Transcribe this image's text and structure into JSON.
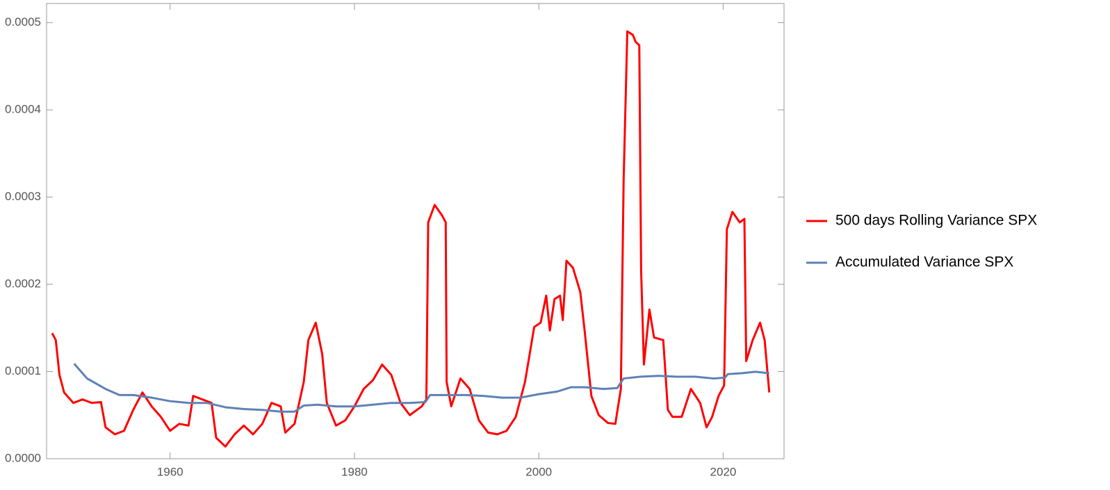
{
  "chart_data": {
    "type": "line",
    "xlim": [
      1946.6,
      2026.6
    ],
    "xticks": [
      1960,
      1980,
      2000,
      2020
    ],
    "ylim": [
      0,
      0.000522
    ],
    "yticks": [
      {
        "value": 0,
        "label": "0.0000"
      },
      0.0001,
      0.0002,
      0.0003,
      0.0004,
      0.0005
    ],
    "legend": "right",
    "series": [
      {
        "name": "500 days Rolling Variance SPX",
        "color": "#ff0000",
        "x": [
          1947.2,
          1947.6,
          1948.0,
          1948.5,
          1949.5,
          1950.5,
          1951.5,
          1952.5,
          1953,
          1954,
          1955,
          1956,
          1957,
          1958,
          1959,
          1960,
          1961,
          1962,
          1962.5,
          1963.5,
          1964.5,
          1965,
          1966,
          1967,
          1968,
          1969,
          1970,
          1971,
          1972,
          1972.5,
          1973.5,
          1974.5,
          1975,
          1975.8,
          1976.5,
          1977,
          1978,
          1979,
          1980,
          1981,
          1982,
          1983,
          1984,
          1985,
          1986,
          1987.3,
          1987.8,
          1988.0,
          1988.7,
          1989.5,
          1989.9,
          1990.0,
          1990.5,
          1991.5,
          1992.5,
          1993.5,
          1994.5,
          1995.5,
          1996.5,
          1997.5,
          1998.5,
          1999.5,
          2000.2,
          2000.8,
          2001.2,
          2001.7,
          2002.3,
          2002.6,
          2003,
          2003.7,
          2004.5,
          2005.0,
          2005.7,
          2006.5,
          2007.5,
          2008.3,
          2008.9,
          2009.2,
          2009.6,
          2010.2,
          2010.5,
          2010.9,
          2011.1,
          2011.4,
          2012,
          2012.5,
          2013.5,
          2014,
          2014.5,
          2015.5,
          2016.5,
          2017.5,
          2018.2,
          2018.8,
          2019.5,
          2020.1,
          2020.4,
          2021.0,
          2021.8,
          2022.3,
          2022.5,
          2023.2,
          2024.0,
          2024.5,
          2025.0
        ],
        "values": [
          0.000144,
          0.000136,
          9.6e-05,
          7.6e-05,
          6.4e-05,
          6.8e-05,
          6.4e-05,
          6.5e-05,
          3.6e-05,
          2.8e-05,
          3.2e-05,
          5.6e-05,
          7.6e-05,
          6e-05,
          4.8e-05,
          3.2e-05,
          4e-05,
          3.8e-05,
          7.2e-05,
          6.8e-05,
          6.4e-05,
          2.4e-05,
          1.4e-05,
          2.8e-05,
          3.8e-05,
          2.8e-05,
          4e-05,
          6.4e-05,
          6e-05,
          3e-05,
          4e-05,
          8.8e-05,
          0.000136,
          0.000156,
          0.00012,
          6.4e-05,
          3.8e-05,
          4.4e-05,
          6e-05,
          8e-05,
          9e-05,
          0.000108,
          9.6e-05,
          6.4e-05,
          5e-05,
          6e-05,
          6.8e-05,
          0.000271,
          0.000291,
          0.000279,
          0.000271,
          8.8e-05,
          6e-05,
          9.2e-05,
          8e-05,
          4.4e-05,
          3e-05,
          2.8e-05,
          3.2e-05,
          4.8e-05,
          8.8e-05,
          0.000151,
          0.000156,
          0.000187,
          0.000147,
          0.000183,
          0.000187,
          0.000159,
          0.000227,
          0.000219,
          0.000191,
          0.000144,
          7.2e-05,
          5e-05,
          4.1e-05,
          4e-05,
          8e-05,
          0.000319,
          0.00049,
          0.000486,
          0.000478,
          0.000474,
          0.000215,
          0.000108,
          0.000171,
          0.000139,
          0.000136,
          5.6e-05,
          4.8e-05,
          4.8e-05,
          8e-05,
          6.4e-05,
          3.6e-05,
          4.8e-05,
          7.2e-05,
          8.4e-05,
          0.000263,
          0.000283,
          0.000271,
          0.000275,
          0.000112,
          0.000136,
          0.000156,
          0.000136,
          7.6e-05
        ]
      },
      {
        "name": "Accumulated Variance SPX",
        "color": "#5e81b5",
        "x": [
          1949.6,
          1950,
          1951,
          1952,
          1953,
          1954.5,
          1956,
          1958,
          1960,
          1962,
          1964,
          1966,
          1968,
          1970,
          1972,
          1973.5,
          1974.5,
          1976,
          1978,
          1980,
          1982,
          1984,
          1986,
          1987.7,
          1988.2,
          1990,
          1992,
          1994,
          1996,
          1998,
          2000,
          2002,
          2003.5,
          2005,
          2007,
          2008.5,
          2009.2,
          2011,
          2013,
          2015,
          2017,
          2019,
          2020.2,
          2020.5,
          2022,
          2023.5,
          2025
        ],
        "values": [
          0.000109,
          0.000104,
          9.2e-05,
          8.6e-05,
          8e-05,
          7.3e-05,
          7.3e-05,
          7e-05,
          6.6e-05,
          6.4e-05,
          6.4e-05,
          5.9e-05,
          5.7e-05,
          5.6e-05,
          5.4e-05,
          5.4e-05,
          6.1e-05,
          6.2e-05,
          6e-05,
          6e-05,
          6.2e-05,
          6.4e-05,
          6.4e-05,
          6.5e-05,
          7.3e-05,
          7.3e-05,
          7.3e-05,
          7.2e-05,
          7e-05,
          7e-05,
          7.4e-05,
          7.7e-05,
          8.2e-05,
          8.2e-05,
          8e-05,
          8.1e-05,
          9.2e-05,
          9.4e-05,
          9.5e-05,
          9.4e-05,
          9.4e-05,
          9.2e-05,
          9.3e-05,
          9.7e-05,
          9.8e-05,
          9.97e-05,
          9.8e-05
        ]
      }
    ]
  }
}
